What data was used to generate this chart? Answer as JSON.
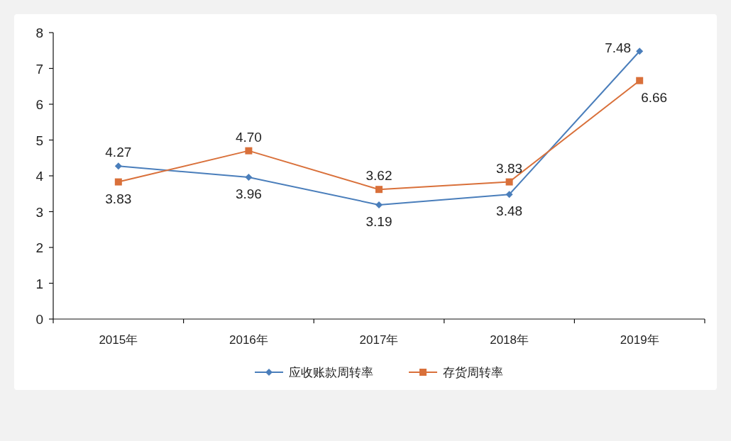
{
  "chart_data": {
    "type": "line",
    "categories": [
      "2015年",
      "2016年",
      "2017年",
      "2018年",
      "2019年"
    ],
    "series": [
      {
        "name": "应收账款周转率",
        "color": "#4a7ebb",
        "marker": "diamond",
        "values": [
          4.27,
          3.96,
          3.19,
          3.48,
          7.48
        ],
        "value_labels": [
          "4.27",
          "3.96",
          "3.19",
          "3.48",
          "7.48"
        ]
      },
      {
        "name": "存货周转率",
        "color": "#d9703a",
        "marker": "square",
        "values": [
          3.83,
          4.7,
          3.62,
          3.83,
          6.66
        ],
        "value_labels": [
          "3.83",
          "4.70",
          "3.62",
          "3.83",
          "6.66"
        ]
      }
    ],
    "ylim": [
      0,
      8
    ],
    "yticks": [
      0,
      1,
      2,
      3,
      4,
      5,
      6,
      7,
      8
    ],
    "grid": false,
    "legend": "bottom",
    "line_style": "solid"
  }
}
